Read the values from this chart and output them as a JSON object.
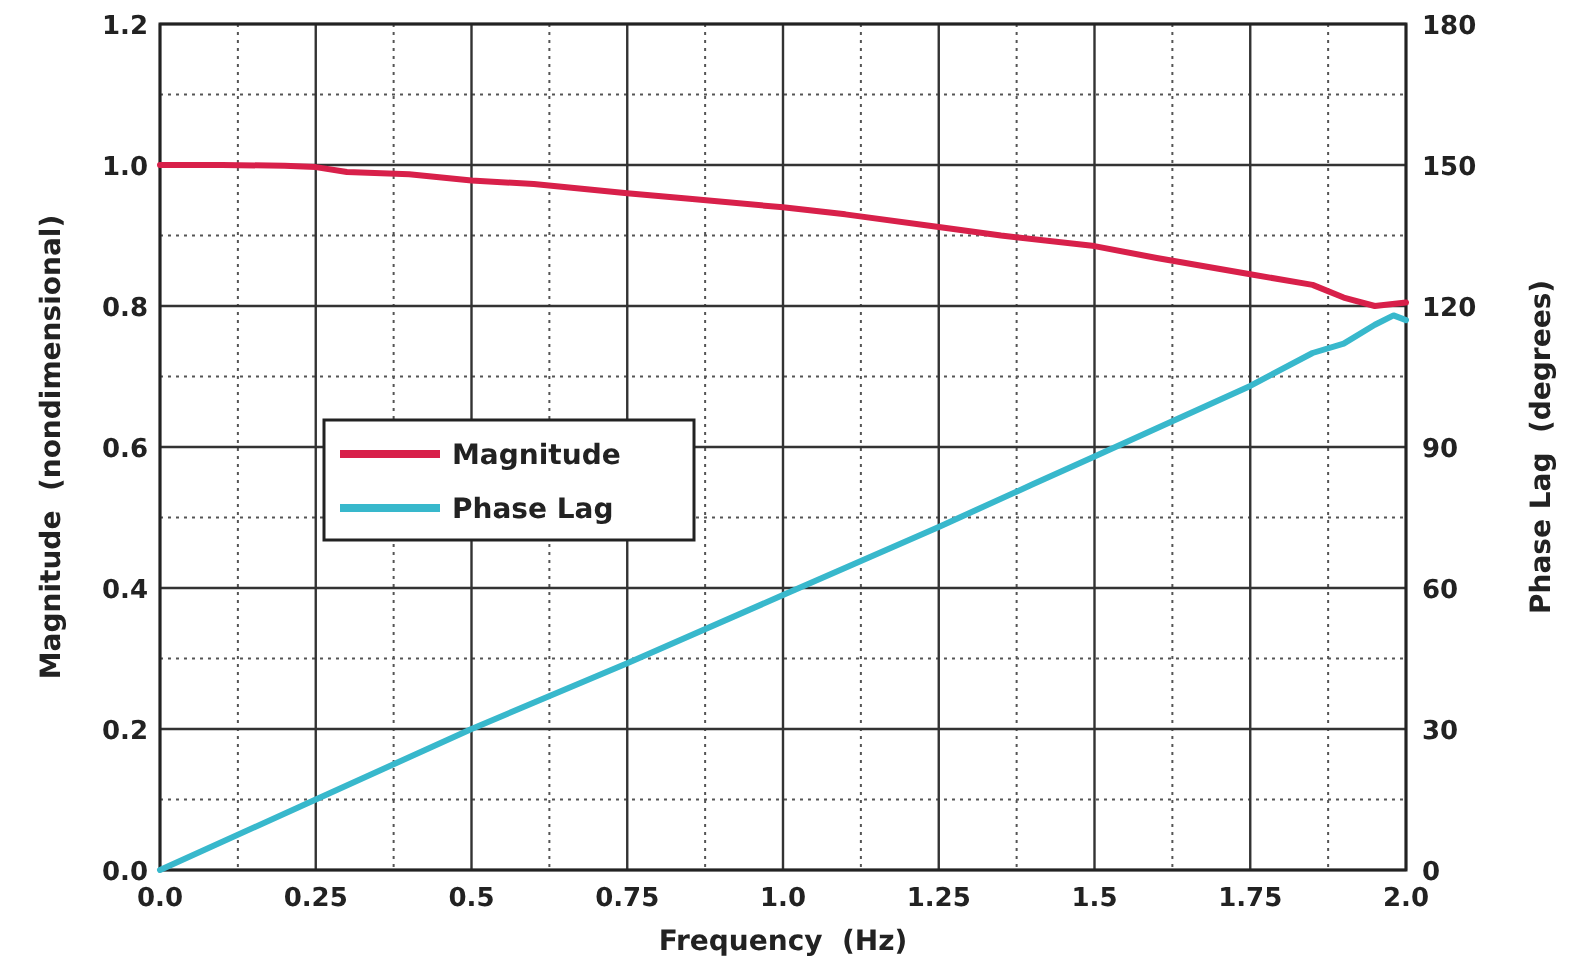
{
  "chart_data": {
    "type": "line",
    "xlabel": "Frequency  (Hz)",
    "ylabel": "Magnitude  (nondimensional)",
    "y2label": "Phase Lag  (degrees)",
    "xlim": [
      0,
      2
    ],
    "xticks": [
      {
        "value": 0,
        "label": "0.0"
      },
      0.25,
      0.5,
      0.75,
      {
        "value": 1,
        "label": "1.0"
      },
      1.25,
      1.5,
      1.75,
      {
        "value": 2,
        "label": "2.0"
      }
    ],
    "ylim": [
      0,
      1.2
    ],
    "yticks": [
      {
        "value": 0,
        "label": "0.0"
      },
      0.2,
      0.4,
      0.6,
      0.8,
      {
        "value": 1,
        "label": "1.0"
      },
      1.2
    ],
    "y2lim": [
      0,
      180
    ],
    "y2ticks": [
      0,
      30,
      60,
      90,
      120,
      150,
      180
    ],
    "grid": true,
    "legend": "center left",
    "line_style": "solid",
    "series": [
      {
        "name": "Magnitude",
        "color": "#d8204a",
        "x": [
          0,
          0.1,
          0.2,
          0.25,
          0.3,
          0.4,
          0.5,
          0.6,
          0.75,
          0.85,
          1.0,
          1.1,
          1.25,
          1.35,
          1.5,
          1.6,
          1.75,
          1.85,
          1.9,
          1.95,
          2.0
        ],
        "values": [
          1.0,
          1.0,
          0.999,
          0.997,
          0.99,
          0.987,
          0.978,
          0.973,
          0.96,
          0.952,
          0.94,
          0.93,
          0.912,
          0.9,
          0.885,
          0.868,
          0.845,
          0.83,
          0.812,
          0.8,
          0.805
        ]
      },
      {
        "name": "Phase Lag",
        "axis": "y2",
        "color": "#38b8cc",
        "x": [
          0,
          0.25,
          0.5,
          0.75,
          1.0,
          1.25,
          1.4,
          1.5,
          1.6,
          1.75,
          1.85,
          1.9,
          1.95,
          1.98,
          2.0
        ],
        "values": [
          0,
          15,
          30,
          44,
          58.5,
          73,
          82,
          88,
          94,
          103,
          110,
          112,
          116,
          118,
          117
        ]
      }
    ]
  }
}
